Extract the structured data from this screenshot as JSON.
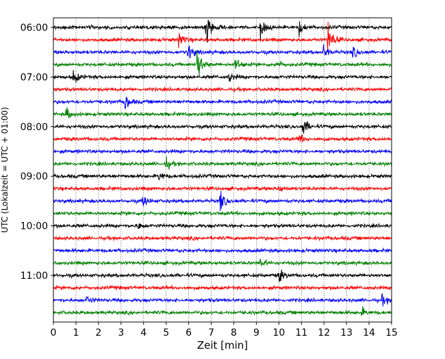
{
  "chart_data": {
    "type": "line",
    "chart_kind": "helicorder",
    "xlabel": "Zeit  [min]",
    "ylabel": "UTC (Lokalzeit = UTC + 01:00)",
    "xlim": [
      0,
      15
    ],
    "x_ticks": [
      0,
      1,
      2,
      3,
      4,
      5,
      6,
      7,
      8,
      9,
      10,
      11,
      12,
      13,
      14,
      15
    ],
    "y_tick_labels": [
      "06:00",
      "07:00",
      "08:00",
      "09:00",
      "10:00",
      "11:00"
    ],
    "start_time_utc": "06:00",
    "trace_interval_minutes": 15,
    "trace_count": 24,
    "grid": {
      "x": true,
      "style": "dotted"
    },
    "trace_colors": [
      "#000000",
      "#ff0000",
      "#0000ff",
      "#008000"
    ],
    "events": [
      {
        "trace": 0,
        "minute": 6.8,
        "amplitude": 3.0
      },
      {
        "trace": 0,
        "minute": 9.2,
        "amplitude": 1.6
      },
      {
        "trace": 0,
        "minute": 10.9,
        "amplitude": 1.3
      },
      {
        "trace": 1,
        "minute": 5.6,
        "amplitude": 1.5
      },
      {
        "trace": 1,
        "minute": 12.2,
        "amplitude": 3.0
      },
      {
        "trace": 2,
        "minute": 6.0,
        "amplitude": 1.5
      },
      {
        "trace": 2,
        "minute": 12.0,
        "amplitude": 1.2
      },
      {
        "trace": 2,
        "minute": 13.3,
        "amplitude": 1.0
      },
      {
        "trace": 3,
        "minute": 6.4,
        "amplitude": 3.0
      },
      {
        "trace": 3,
        "minute": 8.1,
        "amplitude": 1.2
      },
      {
        "trace": 3,
        "minute": 9.9,
        "amplitude": 0.9
      },
      {
        "trace": 4,
        "minute": 0.9,
        "amplitude": 1.2
      },
      {
        "trace": 4,
        "minute": 7.8,
        "amplitude": 0.9
      },
      {
        "trace": 6,
        "minute": 3.2,
        "amplitude": 1.4
      },
      {
        "trace": 7,
        "minute": 0.6,
        "amplitude": 0.9
      },
      {
        "trace": 8,
        "minute": 11.1,
        "amplitude": 1.6
      },
      {
        "trace": 9,
        "minute": 10.9,
        "amplitude": 0.9
      },
      {
        "trace": 11,
        "minute": 5.0,
        "amplitude": 1.0
      },
      {
        "trace": 12,
        "minute": 4.7,
        "amplitude": 0.8
      },
      {
        "trace": 13,
        "minute": 10.0,
        "amplitude": 0.8
      },
      {
        "trace": 14,
        "minute": 4.0,
        "amplitude": 1.0
      },
      {
        "trace": 14,
        "minute": 7.4,
        "amplitude": 1.8
      },
      {
        "trace": 16,
        "minute": 3.8,
        "amplitude": 0.6
      },
      {
        "trace": 19,
        "minute": 9.2,
        "amplitude": 0.9
      },
      {
        "trace": 20,
        "minute": 10.0,
        "amplitude": 1.3
      },
      {
        "trace": 22,
        "minute": 1.5,
        "amplitude": 0.8
      },
      {
        "trace": 22,
        "minute": 14.6,
        "amplitude": 0.8
      },
      {
        "trace": 23,
        "minute": 13.7,
        "amplitude": 0.6
      }
    ]
  }
}
